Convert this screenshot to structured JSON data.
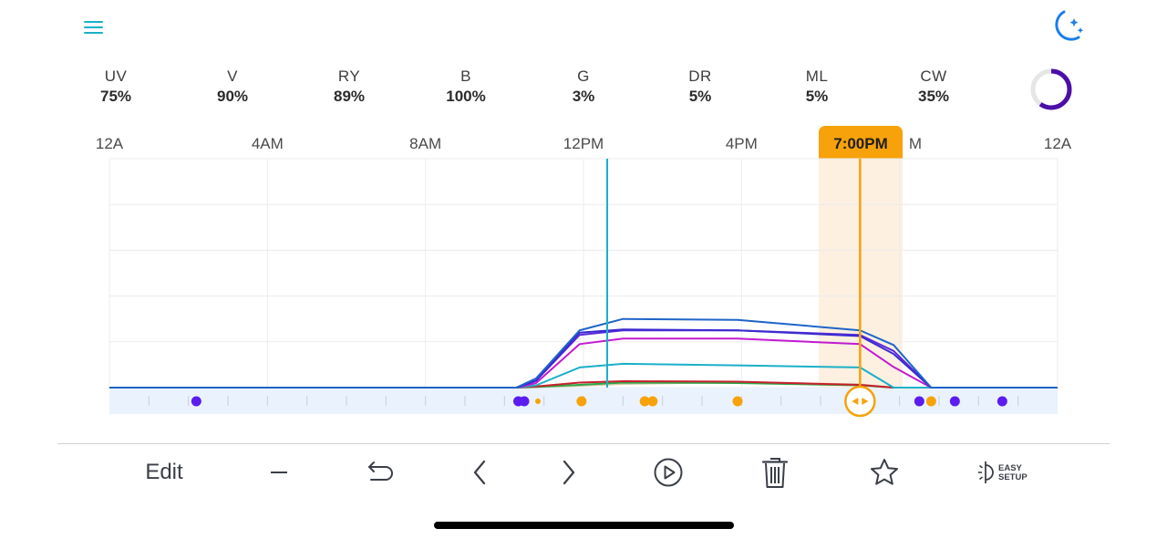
{
  "header": {
    "menu_icon": "hamburger-menu-icon",
    "mode_icon": "moon-stars-icon"
  },
  "channels": [
    {
      "name": "UV",
      "value": "75%"
    },
    {
      "name": "V",
      "value": "90%"
    },
    {
      "name": "RY",
      "value": "89%"
    },
    {
      "name": "B",
      "value": "100%"
    },
    {
      "name": "G",
      "value": "3%"
    },
    {
      "name": "DR",
      "value": "5%"
    },
    {
      "name": "ML",
      "value": "5%"
    },
    {
      "name": "CW",
      "value": "35%"
    }
  ],
  "progress": {
    "fraction": 0.6,
    "color": "#4b0fa8"
  },
  "timeline": {
    "tick_labels": [
      "12A",
      "4AM",
      "8AM",
      "12PM",
      "4PM",
      "M",
      "12A"
    ],
    "selected_time": "7:00PM",
    "selected_hour": 19,
    "current_hour": 12.6
  },
  "colors": {
    "accent": "#f7a20a",
    "current_time_line": "#1ab0c8",
    "point_night": "#5b1cf0",
    "point_day": "#f7a20a"
  },
  "chart_data": {
    "type": "line",
    "xlim": [
      0,
      24
    ],
    "ylim": [
      0,
      100
    ],
    "series": [
      {
        "color": "#1e64c8",
        "points": [
          [
            0,
            0
          ],
          [
            10.3,
            0
          ],
          [
            10.8,
            4
          ],
          [
            11.9,
            25
          ],
          [
            13.0,
            30
          ],
          [
            15.9,
            29.6
          ],
          [
            19.0,
            25
          ],
          [
            19.85,
            18.6
          ],
          [
            20.8,
            0
          ],
          [
            24,
            0
          ]
        ]
      },
      {
        "color": "#3a2ad0",
        "points": [
          [
            0,
            0
          ],
          [
            10.3,
            0
          ],
          [
            10.8,
            3
          ],
          [
            11.9,
            24
          ],
          [
            13.0,
            25.4
          ],
          [
            15.9,
            25
          ],
          [
            19.0,
            22.5
          ],
          [
            19.85,
            14.7
          ],
          [
            20.8,
            0
          ],
          [
            24,
            0
          ]
        ]
      },
      {
        "color": "#5a2ad8",
        "points": [
          [
            0,
            0
          ],
          [
            10.3,
            0
          ],
          [
            10.8,
            3
          ],
          [
            11.9,
            23
          ],
          [
            13.0,
            25
          ],
          [
            15.9,
            25
          ],
          [
            19.0,
            23
          ],
          [
            19.85,
            16
          ],
          [
            20.8,
            0
          ],
          [
            24,
            0
          ]
        ]
      },
      {
        "color": "#c21ad0",
        "points": [
          [
            0,
            0
          ],
          [
            10.3,
            0
          ],
          [
            10.8,
            2
          ],
          [
            11.9,
            19
          ],
          [
            13.0,
            21.4
          ],
          [
            15.9,
            21.4
          ],
          [
            19.0,
            19
          ],
          [
            19.85,
            9
          ],
          [
            20.8,
            0
          ],
          [
            24,
            0
          ]
        ]
      },
      {
        "color": "#1ab0c8",
        "points": [
          [
            0,
            0
          ],
          [
            10.3,
            0
          ],
          [
            10.8,
            1
          ],
          [
            11.9,
            8.8
          ],
          [
            13.0,
            10.4
          ],
          [
            15.9,
            9.7
          ],
          [
            19.0,
            8.8
          ],
          [
            19.85,
            0
          ],
          [
            24,
            0
          ]
        ]
      },
      {
        "color": "#c8202c",
        "points": [
          [
            0,
            0
          ],
          [
            10.3,
            0
          ],
          [
            10.8,
            0.5
          ],
          [
            11.9,
            2.2
          ],
          [
            13.0,
            2.8
          ],
          [
            15.9,
            2.6
          ],
          [
            19.0,
            1.2
          ],
          [
            19.85,
            0
          ],
          [
            24,
            0
          ]
        ]
      },
      {
        "color": "#2aa84a",
        "points": [
          [
            0,
            0
          ],
          [
            10.3,
            0
          ],
          [
            10.8,
            0.3
          ],
          [
            11.9,
            1.2
          ],
          [
            13.0,
            2.2
          ],
          [
            15.9,
            2.0
          ],
          [
            19.0,
            1.0
          ],
          [
            19.85,
            0
          ],
          [
            24,
            0
          ]
        ]
      },
      {
        "color": "#d8c8a8",
        "points": [
          [
            0,
            0
          ],
          [
            10.3,
            0
          ],
          [
            10.8,
            0.2
          ],
          [
            11.9,
            0.8
          ],
          [
            13.0,
            1.6
          ],
          [
            15.9,
            2.4
          ],
          [
            19.0,
            1.4
          ],
          [
            19.85,
            0
          ],
          [
            24,
            0
          ]
        ]
      }
    ],
    "night_points_hours": [
      2.2,
      10.35,
      10.5,
      20.5,
      21.4,
      22.6
    ],
    "day_points_hours": [
      11.95,
      13.55,
      13.75,
      15.9,
      20.8
    ],
    "small_point_hours": [
      10.5
    ]
  },
  "toolbar": {
    "edit_label": "Edit",
    "easy_setup_line1": "EASY",
    "easy_setup_line2": "SETUP"
  }
}
